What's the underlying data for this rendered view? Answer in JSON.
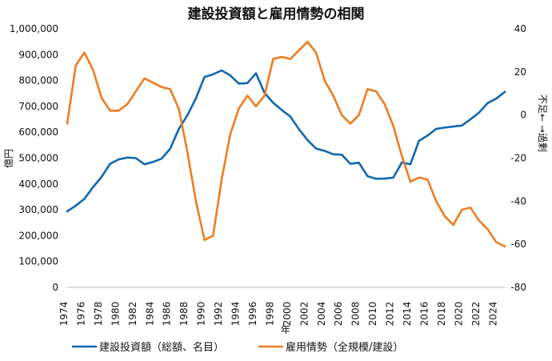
{
  "chart_data": {
    "type": "line",
    "title": "建設投資額と雇用情勢の相関",
    "xlabel": "年",
    "ylabel_left": "億円",
    "ylabel_right": "不足← →過剰",
    "x": [
      1974,
      1975,
      1976,
      1977,
      1978,
      1979,
      1980,
      1981,
      1982,
      1983,
      1984,
      1985,
      1986,
      1987,
      1988,
      1989,
      1990,
      1991,
      1992,
      1993,
      1994,
      1995,
      1996,
      1997,
      1998,
      1999,
      2000,
      2001,
      2002,
      2003,
      2004,
      2005,
      2006,
      2007,
      2008,
      2009,
      2010,
      2011,
      2012,
      2013,
      2014,
      2015,
      2016,
      2017,
      2018,
      2019,
      2020,
      2021,
      2022,
      2023,
      2024,
      2025
    ],
    "x_ticks": [
      1974,
      1976,
      1978,
      1980,
      1982,
      1984,
      1986,
      1988,
      1990,
      1992,
      1994,
      1996,
      1998,
      2000,
      2002,
      2004,
      2006,
      2008,
      2010,
      2012,
      2014,
      2016,
      2018,
      2020,
      2022,
      2024
    ],
    "ylim_left": [
      0,
      1000000
    ],
    "ylim_right": [
      -80,
      40
    ],
    "y_ticks_left": [
      "0",
      "100,000",
      "200,000",
      "300,000",
      "400,000",
      "500,000",
      "600,000",
      "700,000",
      "800,000",
      "900,000",
      "1,000,000"
    ],
    "y_ticks_left_values": [
      0,
      100000,
      200000,
      300000,
      400000,
      500000,
      600000,
      700000,
      800000,
      900000,
      1000000
    ],
    "y_ticks_right": [
      "40",
      "20",
      "0",
      "-20",
      "-40",
      "-60",
      "-80"
    ],
    "y_ticks_right_values": [
      40,
      20,
      0,
      -20,
      -40,
      -60,
      -80
    ],
    "grid": false,
    "legend_position": "bottom",
    "series": [
      {
        "name": "建設投資額（総額、名目）",
        "axis": "left",
        "color": "#0f67b1",
        "values": [
          294000,
          316000,
          342000,
          387000,
          427000,
          478000,
          495000,
          502000,
          500000,
          476000,
          485000,
          498000,
          536000,
          612000,
          665000,
          731000,
          814000,
          824000,
          839000,
          820000,
          788000,
          790000,
          828000,
          752000,
          714000,
          686000,
          661000,
          612000,
          570000,
          537000,
          528000,
          515000,
          513000,
          478000,
          482000,
          430000,
          420000,
          421000,
          424000,
          483000,
          476000,
          567000,
          587000,
          613000,
          618000,
          622000,
          626000,
          650000,
          676000,
          713000,
          730000,
          756000
        ]
      },
      {
        "name": "雇用情勢（全規模/建設）",
        "axis": "right",
        "color": "#ee7d21",
        "values": [
          -4,
          23,
          29,
          21,
          8,
          2,
          2,
          5,
          11,
          17,
          15,
          13,
          12,
          3,
          -17,
          -40,
          -58,
          -56,
          -30,
          -9,
          3,
          9,
          4,
          9,
          26,
          27,
          26,
          30,
          34,
          29,
          16,
          9,
          0,
          -4,
          0,
          12,
          11,
          5,
          -5,
          -19,
          -31,
          -29,
          -30,
          -40,
          -47,
          -51,
          -44,
          -43,
          -49,
          -53,
          -59,
          -61
        ]
      }
    ]
  }
}
